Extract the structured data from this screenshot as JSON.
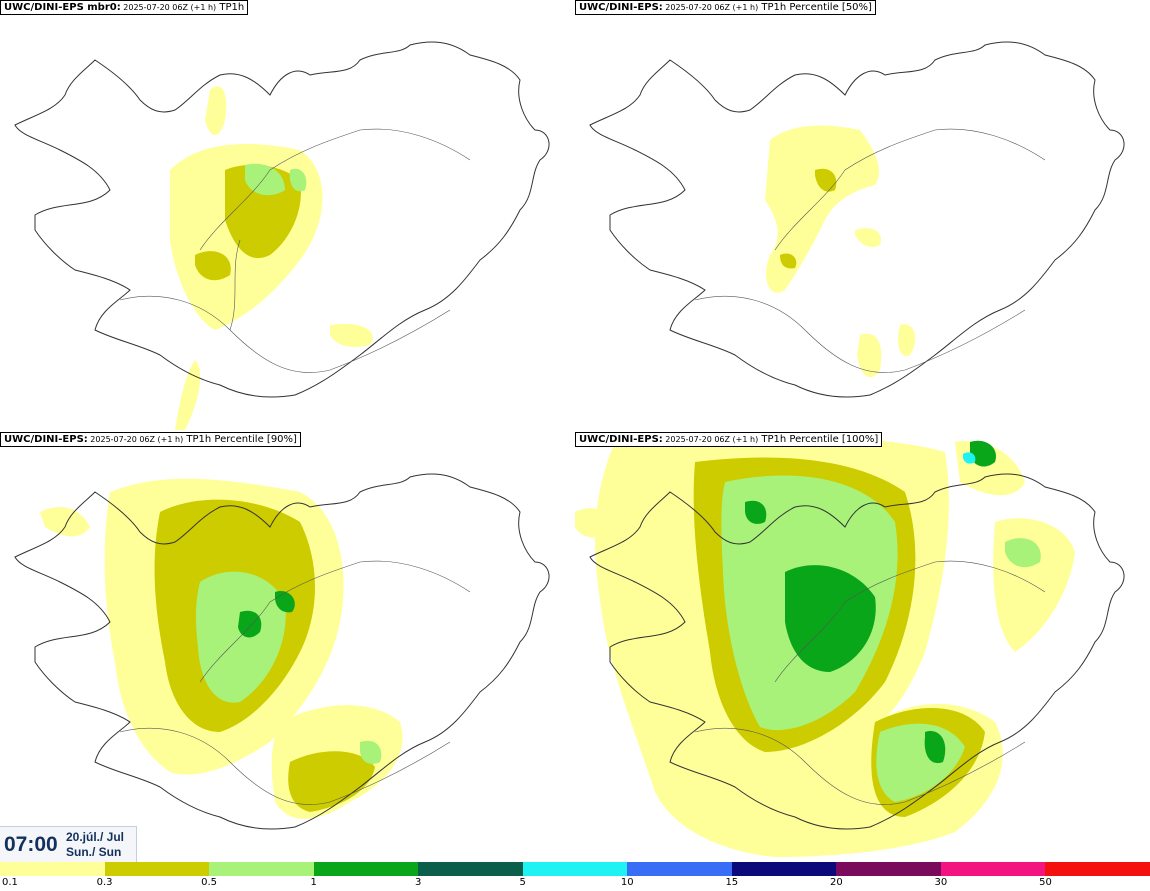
{
  "panels": [
    {
      "model": "UWC/DINI-EPS mbr0",
      "sep": ":",
      "run": " 2025-07-20 06Z (+1 h)",
      "field": " TP1h"
    },
    {
      "model": "UWC/DINI-EPS",
      "sep": ":",
      "run": " 2025-07-20 06Z (+1 h)",
      "field": " TP1h Percentile [50%]"
    },
    {
      "model": "UWC/DINI-EPS",
      "sep": ":",
      "run": " 2025-07-20 06Z (+1 h)",
      "field": " TP1h Percentile [90%]"
    },
    {
      "model": "UWC/DINI-EPS",
      "sep": ":",
      "run": " 2025-07-20 06Z (+1 h)",
      "field": " TP1h Percentile [100%]"
    }
  ],
  "valid_time": {
    "time": "07:00",
    "date_line1": "20.júl./ Jul",
    "date_line2": "Sun./ Sun"
  },
  "legend": {
    "colors": [
      "#ffff99",
      "#cccc00",
      "#a8f27a",
      "#0aa61a",
      "#0b5e4a",
      "#1ef2f2",
      "#3a6df5",
      "#0a0a7a",
      "#7a0a5c",
      "#f21480",
      "#f51010"
    ],
    "ticks": [
      "0.1",
      "0.3",
      "0.5",
      "1",
      "3",
      "5",
      "10",
      "15",
      "20",
      "30",
      "50"
    ]
  }
}
